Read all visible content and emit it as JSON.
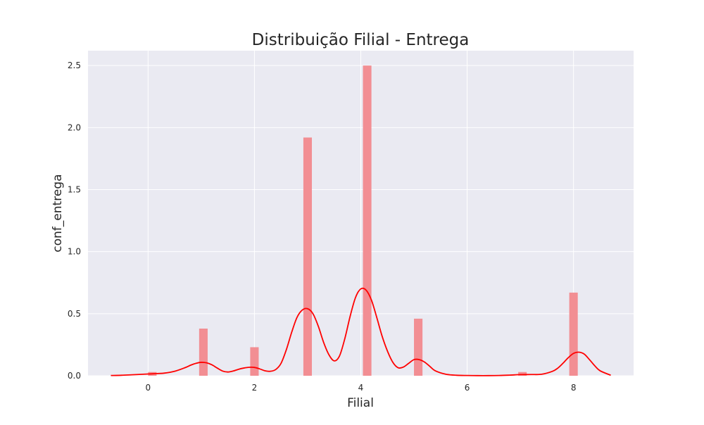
{
  "chart_data": {
    "type": "bar",
    "title": "Distribuição Filial - Entrega",
    "xlabel": "Filial",
    "ylabel": "conf_entrega",
    "xlim": [
      -1.13,
      9.13
    ],
    "ylim": [
      0,
      2.62
    ],
    "grid": true,
    "x_ticks": [
      0,
      2,
      4,
      6,
      8
    ],
    "x_tick_labels": [
      "0",
      "2",
      "4",
      "6",
      "8"
    ],
    "y_ticks": [
      0,
      0.5,
      1.0,
      1.5,
      2.0,
      2.5
    ],
    "y_tick_labels": [
      "0.0",
      "0.5",
      "1.0",
      "1.5",
      "2.0",
      "2.5"
    ],
    "colors": {
      "plot_background": "#eaeaf2",
      "grid": "#ffffff",
      "bar": "#f28e93",
      "kde_line": "#ff0000"
    },
    "bins": [
      {
        "x0": 0.0,
        "x1": 0.16,
        "height": 0.03
      },
      {
        "x0": 0.96,
        "x1": 1.12,
        "height": 0.38
      },
      {
        "x0": 1.92,
        "x1": 2.08,
        "height": 0.23
      },
      {
        "x0": 2.92,
        "x1": 3.08,
        "height": 1.92
      },
      {
        "x0": 4.04,
        "x1": 4.2,
        "height": 2.5
      },
      {
        "x0": 5.0,
        "x1": 5.16,
        "height": 0.46
      },
      {
        "x0": 6.96,
        "x1": 7.12,
        "height": 0.03
      },
      {
        "x0": 7.92,
        "x1": 8.08,
        "height": 0.67
      }
    ],
    "kde": {
      "x": [
        -0.7,
        -0.5,
        -0.3,
        -0.1,
        0.0,
        0.1,
        0.3,
        0.5,
        0.7,
        0.8,
        0.9,
        1.0,
        1.1,
        1.2,
        1.3,
        1.4,
        1.5,
        1.6,
        1.7,
        1.8,
        1.9,
        2.0,
        2.1,
        2.2,
        2.3,
        2.4,
        2.5,
        2.6,
        2.7,
        2.8,
        2.9,
        3.0,
        3.1,
        3.2,
        3.3,
        3.4,
        3.5,
        3.6,
        3.7,
        3.8,
        3.9,
        4.0,
        4.1,
        4.2,
        4.3,
        4.4,
        4.5,
        4.6,
        4.7,
        4.8,
        4.9,
        5.0,
        5.1,
        5.2,
        5.3,
        5.4,
        5.6,
        5.8,
        6.0,
        6.2,
        6.4,
        6.6,
        6.8,
        7.0,
        7.2,
        7.4,
        7.6,
        7.7,
        7.8,
        7.9,
        8.0,
        8.1,
        8.2,
        8.3,
        8.4,
        8.5,
        8.7
      ],
      "y": [
        0.002,
        0.004,
        0.008,
        0.012,
        0.014,
        0.016,
        0.021,
        0.036,
        0.066,
        0.085,
        0.1,
        0.108,
        0.104,
        0.088,
        0.062,
        0.038,
        0.03,
        0.038,
        0.052,
        0.062,
        0.068,
        0.067,
        0.055,
        0.04,
        0.036,
        0.05,
        0.1,
        0.21,
        0.35,
        0.47,
        0.53,
        0.54,
        0.5,
        0.4,
        0.27,
        0.17,
        0.12,
        0.16,
        0.3,
        0.48,
        0.63,
        0.7,
        0.69,
        0.61,
        0.47,
        0.32,
        0.2,
        0.11,
        0.065,
        0.07,
        0.1,
        0.13,
        0.13,
        0.11,
        0.075,
        0.04,
        0.012,
        0.004,
        0.002,
        0.001,
        0.001,
        0.002,
        0.005,
        0.009,
        0.01,
        0.012,
        0.035,
        0.06,
        0.1,
        0.145,
        0.18,
        0.19,
        0.175,
        0.13,
        0.08,
        0.04,
        0.004
      ]
    }
  }
}
